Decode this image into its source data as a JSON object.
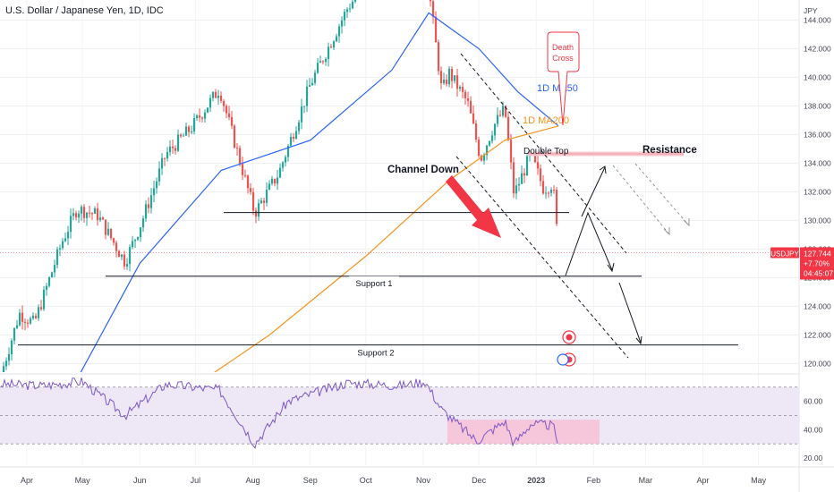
{
  "header": {
    "title": "U.S. Dollar / Japanese Yen, 1D, IDC"
  },
  "colors": {
    "up": "#26a69a",
    "down": "#ef5350",
    "ma50": "#2962ff",
    "ma200": "#f7931a",
    "rsi": "#7e57c2",
    "rsi_band": "#ede7f6",
    "rect_fill": "#f8bbd0",
    "arrow": "#f23645",
    "price_badge": "#f23645"
  },
  "chart_data": {
    "type": "candlestick",
    "symbol": "USDJPY",
    "axis_unit": "JPY",
    "y_ticks": [
      "144.000",
      "142.000",
      "140.000",
      "138.000",
      "136.000",
      "134.000",
      "132.000",
      "130.000",
      "128.000",
      "126.000",
      "124.000",
      "122.000",
      "120.000"
    ],
    "y_range": [
      119.4,
      145.4
    ],
    "x_ticks": [
      "Apr",
      "May",
      "Jun",
      "Jul",
      "Aug",
      "Sep",
      "Oct",
      "Nov",
      "Dec",
      "2023",
      "Feb",
      "Mar",
      "Apr",
      "May"
    ],
    "close_path": [
      [
        "2022-03-18",
        119.2
      ],
      [
        "2022-03-28",
        123.5
      ],
      [
        "2022-04-05",
        122.8
      ],
      [
        "2022-04-20",
        128.5
      ],
      [
        "2022-04-28",
        130.8
      ],
      [
        "2022-05-09",
        130.4
      ],
      [
        "2022-05-24",
        127.1
      ],
      [
        "2022-06-02",
        129.9
      ],
      [
        "2022-06-15",
        134.6
      ],
      [
        "2022-06-29",
        136.5
      ],
      [
        "2022-07-14",
        139.2
      ],
      [
        "2022-08-02",
        130.5
      ],
      [
        "2022-08-15",
        133.3
      ],
      [
        "2022-09-01",
        139.5
      ],
      [
        "2022-09-21",
        144.8
      ],
      [
        "2022-10-20",
        150.1
      ],
      [
        "2022-11-02",
        148.2
      ],
      [
        "2022-11-11",
        139.0
      ],
      [
        "2022-11-15",
        140.3
      ],
      [
        "2022-11-25",
        138.2
      ],
      [
        "2022-12-02",
        134.3
      ],
      [
        "2022-12-09",
        136.6
      ],
      [
        "2022-12-15",
        137.8
      ],
      [
        "2022-12-20",
        131.8
      ],
      [
        "2022-12-29",
        134.6
      ],
      [
        "2023-01-05",
        132.2
      ],
      [
        "2023-01-10",
        132.6
      ],
      [
        "2023-01-12",
        129.5
      ],
      [
        "2023-01-13",
        127.744
      ]
    ],
    "ma50_path": [
      [
        "2022-04-18",
        116.5
      ],
      [
        "2022-06-01",
        127.0
      ],
      [
        "2022-07-15",
        133.5
      ],
      [
        "2022-09-01",
        135.6
      ],
      [
        "2022-10-15",
        140.5
      ],
      [
        "2022-11-04",
        144.5
      ],
      [
        "2022-12-01",
        142.0
      ],
      [
        "2022-12-22",
        139.0
      ],
      [
        "2023-01-13",
        136.6
      ]
    ],
    "ma200_path": [
      [
        "2022-06-20",
        117.5
      ],
      [
        "2022-08-10",
        122.0
      ],
      [
        "2022-10-01",
        127.5
      ],
      [
        "2022-11-15",
        132.8
      ],
      [
        "2022-12-15",
        135.6
      ],
      [
        "2023-01-13",
        136.6
      ]
    ],
    "levels": [
      {
        "label": "Support 1",
        "value": 126.1
      },
      {
        "label": "Support 2",
        "value": 121.3
      },
      {
        "label": "",
        "value": 130.55
      },
      {
        "label": "",
        "value": 134.65
      }
    ],
    "current_price": {
      "symbol": "USDJPY",
      "value": "127.744",
      "change": "+7.70%",
      "countdown": "04:45:07"
    },
    "annotations": {
      "death_cross": "Death\nCross",
      "ma50": "1D MA50",
      "ma200": "1D MA200",
      "double_top": "Double Top",
      "channel_down": "Channel Down",
      "resistance": "Resistance",
      "support_1": "Support 1",
      "support_2": "Support 2",
      "rectangle": "Rectangle"
    },
    "rsi": {
      "ticks": [
        "60.00",
        "40.00",
        "20.00"
      ],
      "range": [
        15,
        78
      ],
      "bands": [
        70,
        50,
        30
      ],
      "path": [
        [
          "2022-03-18",
          72
        ],
        [
          "2022-04-10",
          71
        ],
        [
          "2022-05-01",
          74
        ],
        [
          "2022-05-24",
          50
        ],
        [
          "2022-06-15",
          72
        ],
        [
          "2022-07-14",
          68
        ],
        [
          "2022-08-02",
          30
        ],
        [
          "2022-08-20",
          60
        ],
        [
          "2022-09-21",
          73
        ],
        [
          "2022-10-20",
          71
        ],
        [
          "2022-11-02",
          74
        ],
        [
          "2022-11-11",
          54
        ],
        [
          "2022-11-30",
          32
        ],
        [
          "2022-12-15",
          46
        ],
        [
          "2022-12-20",
          30
        ],
        [
          "2022-12-29",
          44
        ],
        [
          "2023-01-10",
          43
        ],
        [
          "2023-01-13",
          30
        ]
      ]
    }
  }
}
